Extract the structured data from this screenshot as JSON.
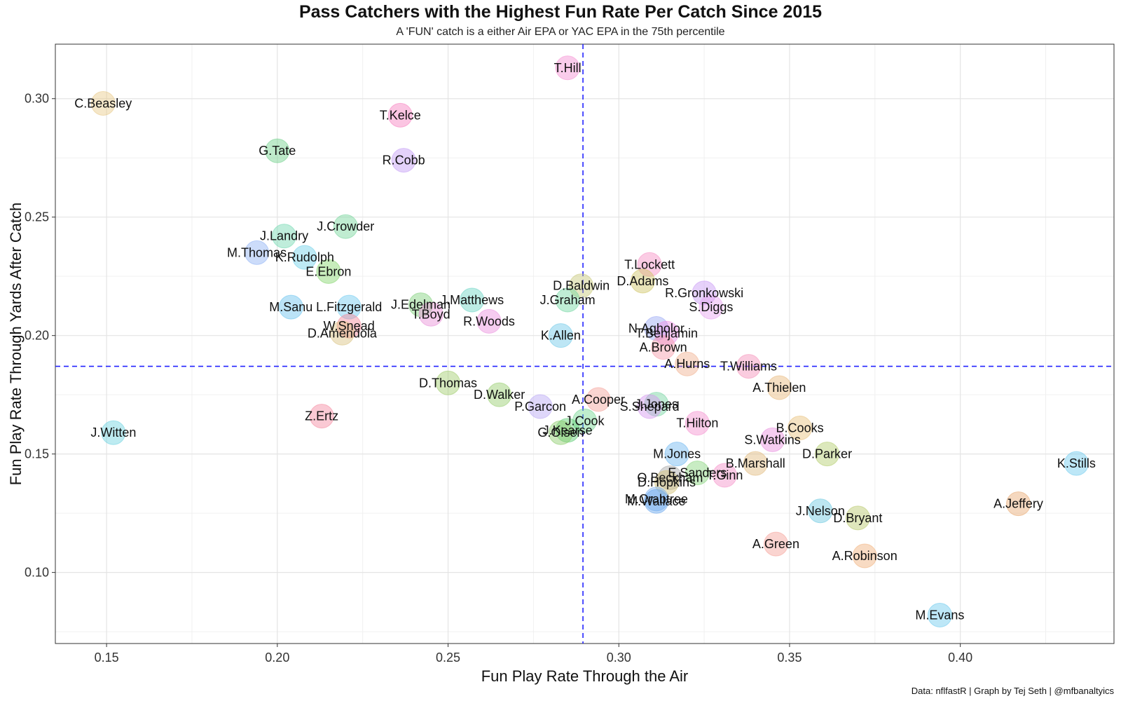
{
  "chart_data": {
    "type": "scatter",
    "title": "Pass Catchers with the Highest Fun Rate Per Catch Since 2015",
    "subtitle": "A 'FUN' catch is a either Air EPA or YAC EPA in the 75th percentile",
    "xlabel": "Fun Play Rate Through the Air",
    "ylabel": "Fun Play Rate Through Yards After Catch",
    "caption": "Data: nflfastR | Graph by Tej Seth | @mfbanaltyics",
    "xlim": [
      0.135,
      0.445
    ],
    "ylim": [
      0.07,
      0.323
    ],
    "xticks": [
      "0.15",
      "0.20",
      "0.25",
      "0.30",
      "0.35",
      "0.40"
    ],
    "yticks": [
      "0.10",
      "0.15",
      "0.20",
      "0.25",
      "0.30"
    ],
    "grid": true,
    "reference_lines": {
      "x": 0.2895,
      "y": 0.187
    },
    "points": [
      {
        "name": "C.Beasley",
        "x": 0.149,
        "y": 0.298,
        "color": "#e8c987"
      },
      {
        "name": "T.Hill",
        "x": 0.285,
        "y": 0.313,
        "color": "#f58fd2"
      },
      {
        "name": "T.Kelce",
        "x": 0.236,
        "y": 0.293,
        "color": "#f77fbf"
      },
      {
        "name": "G.Tate",
        "x": 0.2,
        "y": 0.278,
        "color": "#6fd08a"
      },
      {
        "name": "R.Cobb",
        "x": 0.237,
        "y": 0.274,
        "color": "#c39bf5"
      },
      {
        "name": "J.Crowder",
        "x": 0.22,
        "y": 0.246,
        "color": "#74d49a"
      },
      {
        "name": "J.Landry",
        "x": 0.202,
        "y": 0.242,
        "color": "#70d8b0"
      },
      {
        "name": "M.Thomas",
        "x": 0.194,
        "y": 0.235,
        "color": "#8fb2f5"
      },
      {
        "name": "K.Rudolph",
        "x": 0.208,
        "y": 0.233,
        "color": "#6ed0e8"
      },
      {
        "name": "E.Ebron",
        "x": 0.215,
        "y": 0.227,
        "color": "#82d46a"
      },
      {
        "name": "T.Lockett",
        "x": 0.309,
        "y": 0.23,
        "color": "#f68fc4"
      },
      {
        "name": "D.Adams",
        "x": 0.307,
        "y": 0.223,
        "color": "#cfc463"
      },
      {
        "name": "D.Baldwin",
        "x": 0.289,
        "y": 0.221,
        "color": "#c8c878"
      },
      {
        "name": "R.Gronkowski",
        "x": 0.325,
        "y": 0.218,
        "color": "#c898f5"
      },
      {
        "name": "J.Matthews",
        "x": 0.257,
        "y": 0.215,
        "color": "#6ad4c4"
      },
      {
        "name": "J.Graham",
        "x": 0.285,
        "y": 0.215,
        "color": "#72d6a2"
      },
      {
        "name": "J.Edelman",
        "x": 0.242,
        "y": 0.213,
        "color": "#7fd07a"
      },
      {
        "name": "M.Sanu",
        "x": 0.204,
        "y": 0.212,
        "color": "#68c2ee"
      },
      {
        "name": "L.Fitzgerald",
        "x": 0.221,
        "y": 0.212,
        "color": "#6ecaf0"
      },
      {
        "name": "S.Diggs",
        "x": 0.327,
        "y": 0.212,
        "color": "#e9a3f2"
      },
      {
        "name": "T.Boyd",
        "x": 0.245,
        "y": 0.209,
        "color": "#e88fd8"
      },
      {
        "name": "R.Woods",
        "x": 0.262,
        "y": 0.206,
        "color": "#ea8fde"
      },
      {
        "name": "W.Snead",
        "x": 0.221,
        "y": 0.204,
        "color": "#f5889a"
      },
      {
        "name": "N.Agholor",
        "x": 0.311,
        "y": 0.203,
        "color": "#9aa8f5"
      },
      {
        "name": "T.Benjamin",
        "x": 0.314,
        "y": 0.201,
        "color": "#ec8fe6"
      },
      {
        "name": "D.Amendola",
        "x": 0.219,
        "y": 0.201,
        "color": "#d9c27f"
      },
      {
        "name": "K.Allen",
        "x": 0.283,
        "y": 0.2,
        "color": "#6cc8e8"
      },
      {
        "name": "A.Brown",
        "x": 0.313,
        "y": 0.195,
        "color": "#f59aa8"
      },
      {
        "name": "A.Hurns",
        "x": 0.32,
        "y": 0.188,
        "color": "#f0b08f"
      },
      {
        "name": "T.Williams",
        "x": 0.338,
        "y": 0.187,
        "color": "#f58fb8"
      },
      {
        "name": "D.Thomas",
        "x": 0.25,
        "y": 0.18,
        "color": "#9fcc6a"
      },
      {
        "name": "A.Thielen",
        "x": 0.347,
        "y": 0.178,
        "color": "#e8b87a"
      },
      {
        "name": "D.Walker",
        "x": 0.265,
        "y": 0.175,
        "color": "#94cc6a"
      },
      {
        "name": "A.Cooper",
        "x": 0.294,
        "y": 0.173,
        "color": "#f5a19a"
      },
      {
        "name": "J.Jones",
        "x": 0.311,
        "y": 0.171,
        "color": "#73d4a0"
      },
      {
        "name": "P.Garcon",
        "x": 0.277,
        "y": 0.17,
        "color": "#b9a6f5"
      },
      {
        "name": "S.Shepard",
        "x": 0.309,
        "y": 0.17,
        "color": "#d597f0"
      },
      {
        "name": "J.Cook",
        "x": 0.29,
        "y": 0.164,
        "color": "#72d690"
      },
      {
        "name": "T.Hilton",
        "x": 0.323,
        "y": 0.163,
        "color": "#f58fcf"
      },
      {
        "name": "B.Cooks",
        "x": 0.353,
        "y": 0.161,
        "color": "#e8c07a"
      },
      {
        "name": "J.Kearse",
        "x": 0.285,
        "y": 0.16,
        "color": "#5ccc72"
      },
      {
        "name": "G.Olsen",
        "x": 0.283,
        "y": 0.159,
        "color": "#8ccc6a"
      },
      {
        "name": "J.Witten",
        "x": 0.152,
        "y": 0.159,
        "color": "#6cd2e0"
      },
      {
        "name": "Z.Ertz",
        "x": 0.213,
        "y": 0.166,
        "color": "#f5889f"
      },
      {
        "name": "S.Watkins",
        "x": 0.345,
        "y": 0.156,
        "color": "#e88fde"
      },
      {
        "name": "M.Jones",
        "x": 0.317,
        "y": 0.15,
        "color": "#6cb6f0"
      },
      {
        "name": "D.Parker",
        "x": 0.361,
        "y": 0.15,
        "color": "#b2cc6a"
      },
      {
        "name": "B.Marshall",
        "x": 0.34,
        "y": 0.146,
        "color": "#e0b87a"
      },
      {
        "name": "K.Stills",
        "x": 0.434,
        "y": 0.146,
        "color": "#6ccaee"
      },
      {
        "name": "E.Sanders",
        "x": 0.323,
        "y": 0.142,
        "color": "#86d47a"
      },
      {
        "name": "O.Beckham",
        "x": 0.315,
        "y": 0.14,
        "color": "#a8a8a8"
      },
      {
        "name": "T.Ginn",
        "x": 0.331,
        "y": 0.141,
        "color": "#f58fc8"
      },
      {
        "name": "D.Hopkins",
        "x": 0.314,
        "y": 0.138,
        "color": "#d2c278"
      },
      {
        "name": "M.Crabtree",
        "x": 0.311,
        "y": 0.131,
        "color": "#7ab0f0"
      },
      {
        "name": "M.Wallace",
        "x": 0.311,
        "y": 0.13,
        "color": "#6aa8ee"
      },
      {
        "name": "A.Jeffery",
        "x": 0.417,
        "y": 0.129,
        "color": "#e8a870"
      },
      {
        "name": "J.Nelson",
        "x": 0.359,
        "y": 0.126,
        "color": "#6cc8e0"
      },
      {
        "name": "D.Bryant",
        "x": 0.37,
        "y": 0.123,
        "color": "#b8c86a"
      },
      {
        "name": "A.Green",
        "x": 0.346,
        "y": 0.112,
        "color": "#f5a097"
      },
      {
        "name": "A.Robinson",
        "x": 0.372,
        "y": 0.107,
        "color": "#f0b07a"
      },
      {
        "name": "M.Evans",
        "x": 0.394,
        "y": 0.082,
        "color": "#6ccaee"
      }
    ]
  }
}
